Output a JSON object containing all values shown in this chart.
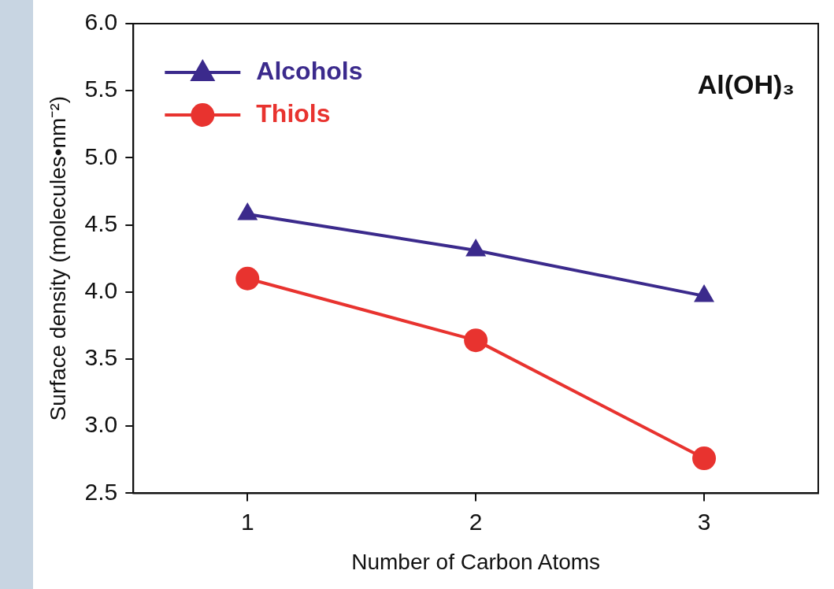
{
  "chart_data": {
    "type": "line",
    "xlabel": "Number of Carbon Atoms",
    "ylabel": "Surface density (molecules•nm⁻²)",
    "x": [
      1,
      2,
      3
    ],
    "series": [
      {
        "name": "Alcohols",
        "color": "#3b2a8c",
        "values": [
          4.58,
          4.31,
          3.97
        ],
        "marker": "triangle"
      },
      {
        "name": "Thiols",
        "color": "#e8332f",
        "values": [
          4.1,
          3.64,
          2.76
        ],
        "marker": "circle"
      }
    ],
    "xlim": [
      0.5,
      3.5
    ],
    "xticks": [
      1,
      2,
      3
    ],
    "ylim": [
      2.5,
      6.0
    ],
    "yticks": [
      {
        "value": 2.5,
        "label": "2.5"
      },
      {
        "value": 3,
        "label": "3.0"
      },
      {
        "value": 3.5,
        "label": "3.5"
      },
      {
        "value": 4,
        "label": "4.0"
      },
      {
        "value": 4.5,
        "label": "4.5"
      },
      {
        "value": 5,
        "label": "5.0"
      },
      {
        "value": 5.5,
        "label": "5.5"
      },
      {
        "value": 6,
        "label": "6.0"
      }
    ],
    "grid": false,
    "legend": "top left",
    "line_style": "solid",
    "annotations": [
      "Al(OH)₃"
    ]
  }
}
